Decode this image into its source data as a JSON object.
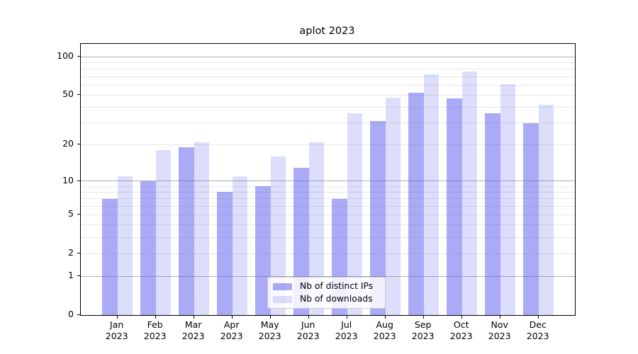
{
  "title": "aplot 2023",
  "chart_data": {
    "type": "bar",
    "title": "aplot 2023",
    "xlabel": "",
    "ylabel": "",
    "categories": [
      "Jan",
      "Feb",
      "Mar",
      "Apr",
      "May",
      "Jun",
      "Jul",
      "Aug",
      "Sep",
      "Oct",
      "Nov",
      "Dec"
    ],
    "category_year": "2023",
    "series": [
      {
        "name": "Nb of distinct IPs",
        "color": "rgba(85,85,240,0.5)",
        "values": [
          7,
          10,
          19,
          8,
          9,
          13,
          7,
          31,
          52,
          47,
          36,
          30
        ]
      },
      {
        "name": "Nb of downloads",
        "color": "rgba(85,85,240,0.2)",
        "values": [
          11,
          18,
          21,
          11,
          16,
          21,
          36,
          48,
          73,
          77,
          61,
          42
        ]
      }
    ],
    "y_scale": "log1p (symlog-like: position proportional to ln(1+v))",
    "y_ticks_labeled": [
      0,
      1,
      2,
      5,
      10,
      20,
      50,
      100
    ],
    "y_major_decades": [
      1,
      10,
      100
    ],
    "y_minor_gridlines": [
      2,
      3,
      4,
      5,
      6,
      7,
      8,
      9,
      20,
      30,
      40,
      50,
      60,
      70,
      80,
      90
    ],
    "ylim": [
      0,
      126
    ],
    "grid": true,
    "legend_position": "lower center"
  },
  "colors": {
    "bar_dark": "rgba(85,85,240,0.5)",
    "bar_light": "rgba(85,85,240,0.2)",
    "grid_major": "#b0b0b0",
    "grid_minor": "#e7e7e7",
    "axis": "#000000",
    "background": "#ffffff",
    "legend_border": "#cccccc"
  }
}
